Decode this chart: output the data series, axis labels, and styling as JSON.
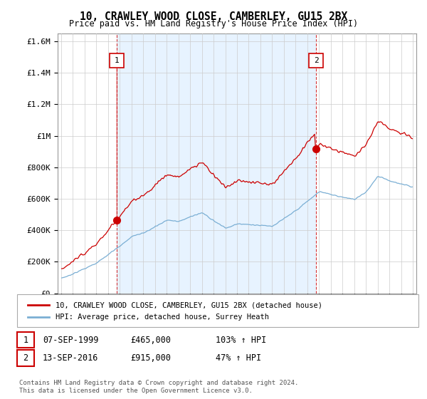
{
  "title": "10, CRAWLEY WOOD CLOSE, CAMBERLEY, GU15 2BX",
  "subtitle": "Price paid vs. HM Land Registry's House Price Index (HPI)",
  "legend_line1": "10, CRAWLEY WOOD CLOSE, CAMBERLEY, GU15 2BX (detached house)",
  "legend_line2": "HPI: Average price, detached house, Surrey Heath",
  "footnote": "Contains HM Land Registry data © Crown copyright and database right 2024.\nThis data is licensed under the Open Government Licence v3.0.",
  "transaction1_date": "07-SEP-1999",
  "transaction1_price": "£465,000",
  "transaction1_hpi": "103% ↑ HPI",
  "transaction2_date": "13-SEP-2016",
  "transaction2_price": "£915,000",
  "transaction2_hpi": "47% ↑ HPI",
  "red_line_color": "#cc0000",
  "blue_line_color": "#7bafd4",
  "shade_color": "#ddeeff",
  "grid_color": "#cccccc",
  "background_color": "#ffffff",
  "ylim": [
    0,
    1650000
  ],
  "yticks": [
    0,
    200000,
    400000,
    600000,
    800000,
    1000000,
    1200000,
    1400000,
    1600000
  ],
  "ytick_labels": [
    "£0",
    "£200K",
    "£400K",
    "£600K",
    "£800K",
    "£1M",
    "£1.2M",
    "£1.4M",
    "£1.6M"
  ],
  "transaction1_x": 1999.75,
  "transaction1_y": 465000,
  "transaction2_x": 2016.75,
  "transaction2_y": 915000,
  "vline1_x": 1999.75,
  "vline2_x": 2016.75,
  "xmin": 1995.0,
  "xmax": 2025.3
}
